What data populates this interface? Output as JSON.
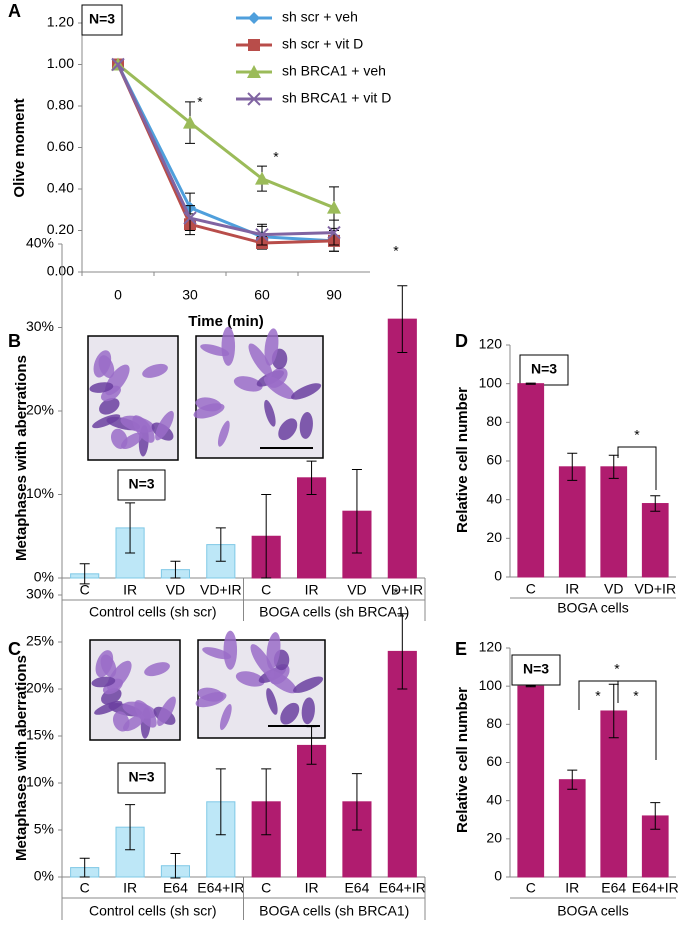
{
  "chart_data": [
    {
      "type": "line",
      "panel": "A",
      "note": "N=3",
      "xlabel": "Time (min)",
      "ylabel": "Olive moment",
      "categories": [
        "0",
        "30",
        "60",
        "90"
      ],
      "ylim": [
        0,
        1.2
      ],
      "yticks": [
        {
          "value": 0,
          "label": "0.00"
        },
        {
          "value": 0.2,
          "label": "0.20"
        },
        {
          "value": 0.4,
          "label": "0.40"
        },
        {
          "value": 0.6,
          "label": "0.60"
        },
        {
          "value": 0.8,
          "label": "0.80"
        },
        {
          "value": 1.0,
          "label": "1.00"
        },
        {
          "value": 1.2,
          "label": "1.20"
        }
      ],
      "series": [
        {
          "name": "sh scr + veh",
          "color": "#4f9fdc",
          "marker": "diamond",
          "values": [
            1.0,
            0.31,
            0.17,
            0.15
          ],
          "errors": [
            0,
            0.07,
            0.05,
            0.05
          ]
        },
        {
          "name": "sh scr + vit D",
          "color": "#b84d4a",
          "marker": "square",
          "values": [
            1.0,
            0.23,
            0.14,
            0.15
          ],
          "errors": [
            0,
            0.05,
            0.03,
            0.05
          ]
        },
        {
          "name": "sh BRCA1 + veh",
          "color": "#9bbb59",
          "marker": "triangle",
          "values": [
            1.0,
            0.72,
            0.45,
            0.31
          ],
          "errors": [
            0,
            0.1,
            0.06,
            0.1
          ]
        },
        {
          "name": "sh BRCA1 + vit D",
          "color": "#8064a2",
          "marker": "x",
          "values": [
            1.0,
            0.26,
            0.18,
            0.19
          ],
          "errors": [
            0,
            0.06,
            0.05,
            0.06
          ]
        }
      ],
      "annotations": [
        "*",
        "*"
      ]
    },
    {
      "type": "grouped_bar",
      "panel": "B",
      "note": "N=3",
      "ylabel": "Metaphases with aberrations",
      "ylim": [
        0,
        40
      ],
      "yticks": [
        {
          "value": 0,
          "label": "0%"
        },
        {
          "value": 10,
          "label": "10%"
        },
        {
          "value": 20,
          "label": "20%"
        },
        {
          "value": 30,
          "label": "30%"
        },
        {
          "value": 40,
          "label": "40%"
        }
      ],
      "groups": [
        {
          "name": "Control cells (sh scr)",
          "color": "#bde7f7",
          "categories": [
            "C",
            "IR",
            "VD",
            "VD+IR"
          ],
          "values": [
            0.5,
            6,
            1,
            4
          ],
          "errors": [
            1.2,
            3,
            1,
            2
          ]
        },
        {
          "name": "BOGA cells (sh BRCA1)",
          "color": "#b01c6f",
          "categories": [
            "C",
            "IR",
            "VD",
            "VD+IR"
          ],
          "values": [
            5,
            12,
            8,
            31
          ],
          "errors": [
            5,
            2,
            5,
            4
          ]
        }
      ],
      "annotations": [
        "*"
      ]
    },
    {
      "type": "bar",
      "panel": "D",
      "note": "N=3",
      "ylabel": "Relative cell number",
      "xlabel": "BOGA cells",
      "color": "#b01c6f",
      "categories": [
        "C",
        "IR",
        "VD",
        "VD+IR"
      ],
      "values": [
        100,
        57,
        57,
        38
      ],
      "errors": [
        0.3,
        7,
        6,
        4
      ],
      "ylim": [
        0,
        120
      ],
      "yticks": [
        0,
        20,
        40,
        60,
        80,
        100,
        120
      ],
      "annotations": [
        "*"
      ]
    },
    {
      "type": "grouped_bar",
      "panel": "C",
      "note": "N=3",
      "ylabel": "Metaphases with aberrations",
      "ylim": [
        0,
        30
      ],
      "yticks": [
        {
          "value": 0,
          "label": "0%"
        },
        {
          "value": 5,
          "label": "5%"
        },
        {
          "value": 10,
          "label": "10%"
        },
        {
          "value": 15,
          "label": "15%"
        },
        {
          "value": 20,
          "label": "20%"
        },
        {
          "value": 25,
          "label": "25%"
        },
        {
          "value": 30,
          "label": "30%"
        }
      ],
      "groups": [
        {
          "name": "Control cells (sh scr)",
          "color": "#bde7f7",
          "categories": [
            "C",
            "IR",
            "E64",
            "E64+IR"
          ],
          "values": [
            1,
            5.3,
            1.2,
            8
          ],
          "errors": [
            1,
            2.4,
            1.3,
            3.5
          ]
        },
        {
          "name": "BOGA cells (sh BRCA1)",
          "color": "#b01c6f",
          "categories": [
            "C",
            "IR",
            "E64",
            "E64+IR"
          ],
          "values": [
            8,
            14,
            8,
            24
          ],
          "errors": [
            3.5,
            2,
            3,
            4
          ]
        }
      ],
      "annotations": [
        "*"
      ]
    },
    {
      "type": "bar",
      "panel": "E",
      "note": "N=3",
      "ylabel": "Relative cell number",
      "xlabel": "BOGA cells",
      "color": "#b01c6f",
      "categories": [
        "C",
        "IR",
        "E64",
        "E64+IR"
      ],
      "values": [
        100,
        51,
        87,
        32
      ],
      "errors": [
        0.3,
        5,
        14,
        7
      ],
      "ylim": [
        0,
        120
      ],
      "yticks": [
        0,
        20,
        40,
        60,
        80,
        100,
        120
      ],
      "annotations": [
        "*",
        "*",
        "*"
      ]
    }
  ]
}
